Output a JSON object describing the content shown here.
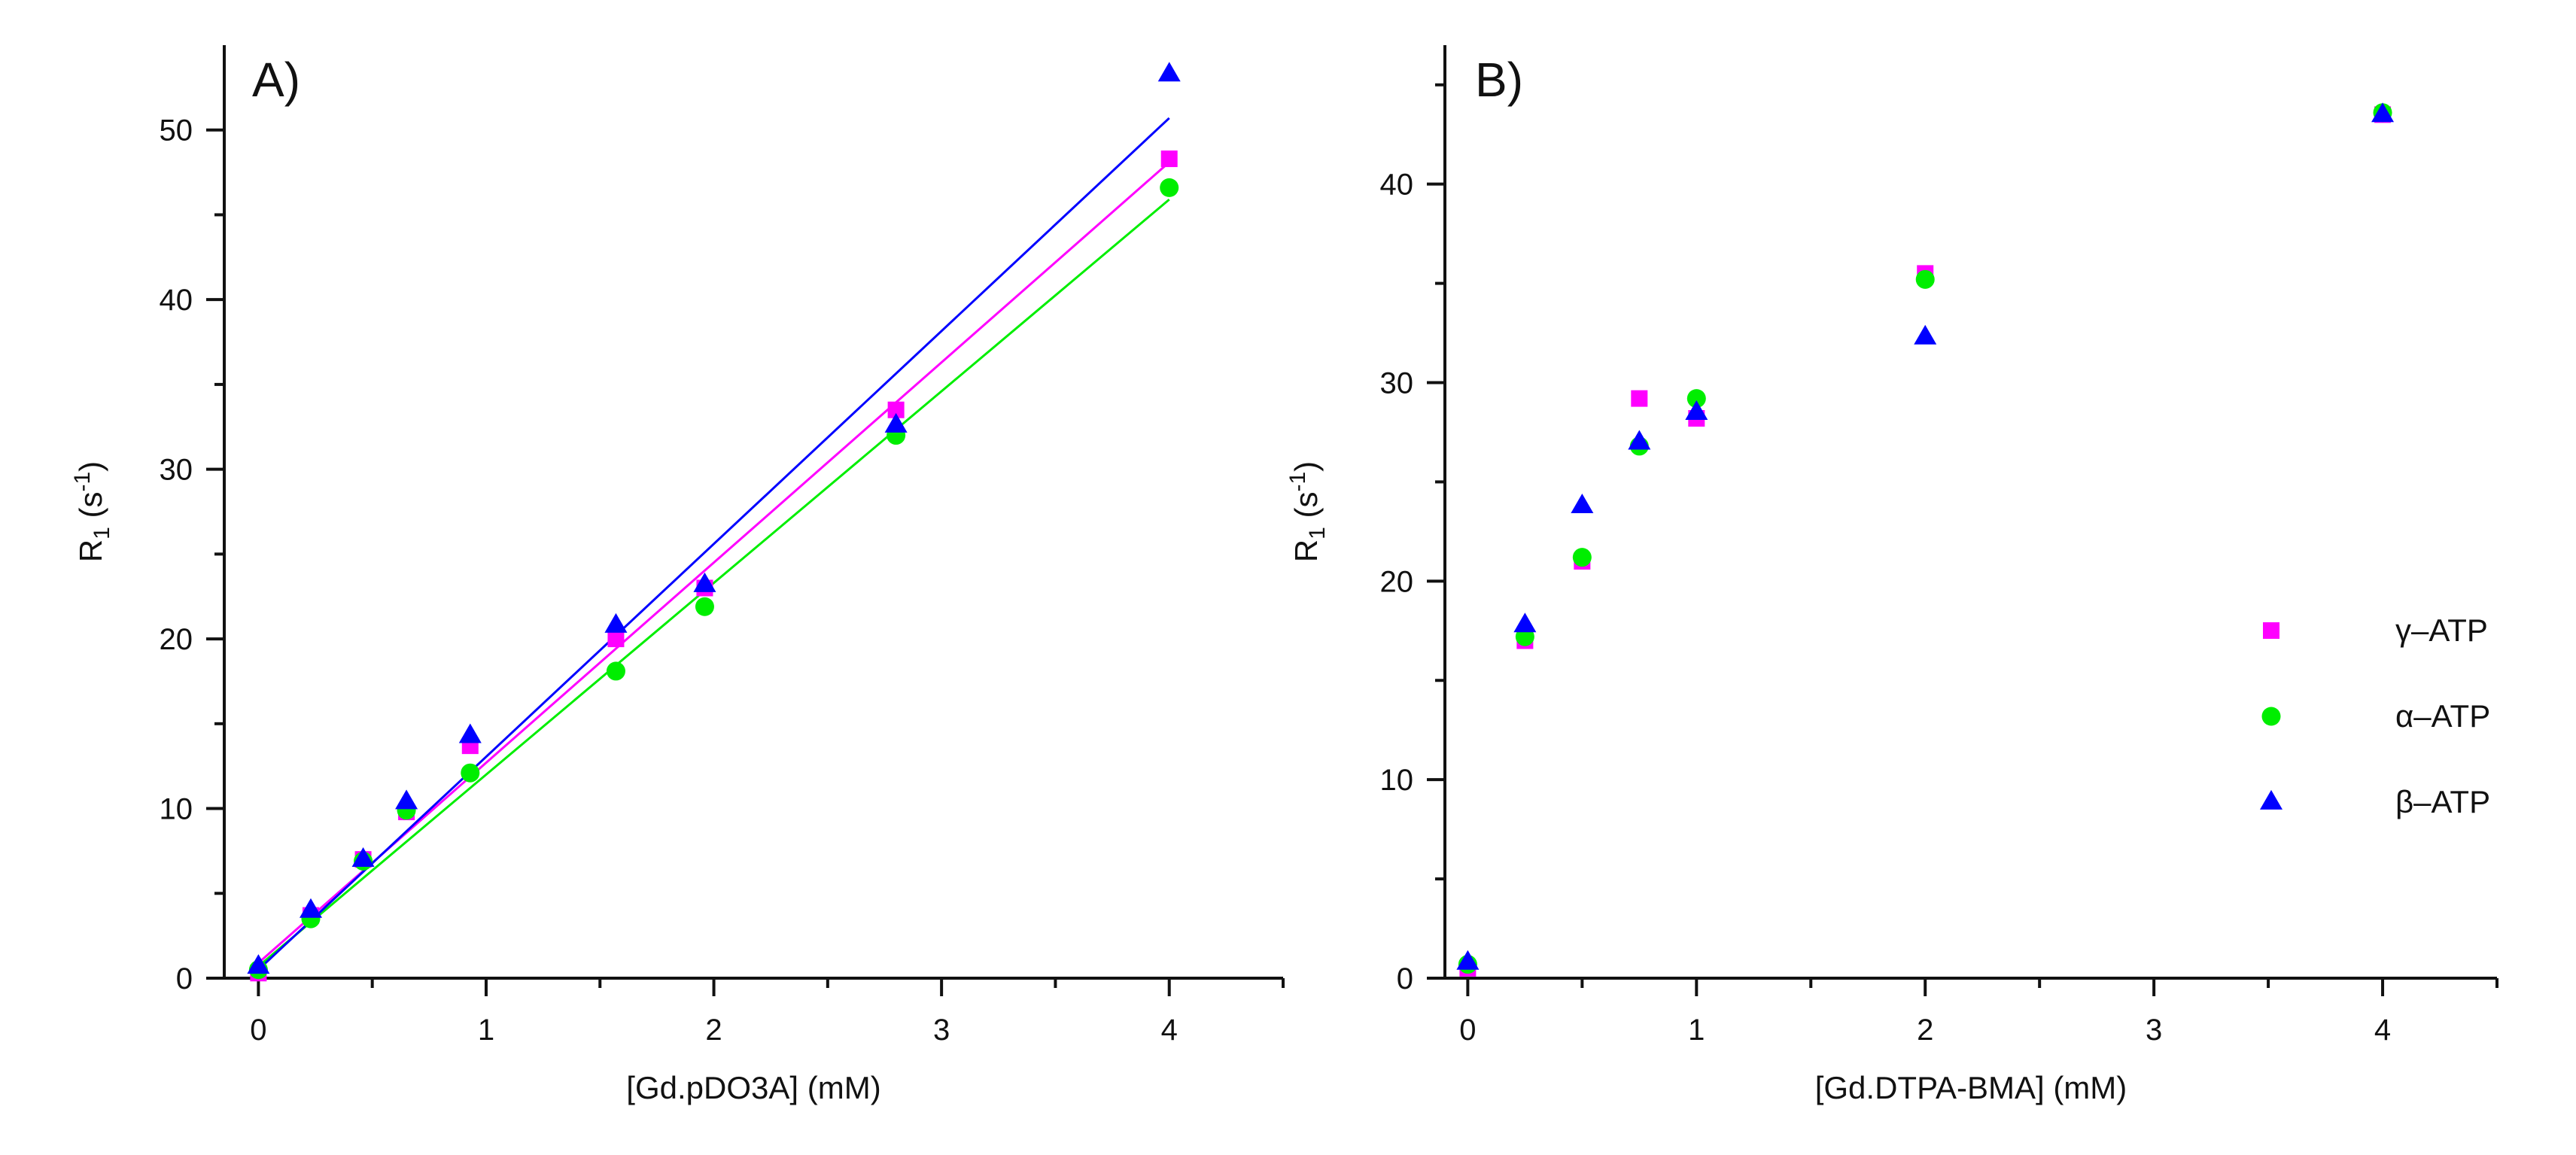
{
  "colors": {
    "gamma": "#ff00ff",
    "alpha": "#00ee00",
    "beta": "#0000ff",
    "axis": "#111111"
  },
  "legend": [
    {
      "key": "gamma",
      "label": "γ–ATP",
      "marker": "square"
    },
    {
      "key": "alpha",
      "label": "α–ATP",
      "marker": "circle"
    },
    {
      "key": "beta",
      "label": "β–ATP",
      "marker": "triangle"
    }
  ],
  "chart_data": [
    {
      "type": "scatter",
      "panel_label": "A)",
      "xlabel": "[Gd.pDO3A] (mM)",
      "ylabel": "R",
      "ylabel_sub": "1",
      "ylabel_unit_pre": " (s",
      "ylabel_sup": "-1",
      "ylabel_unit_post": ")",
      "xlim": [
        -0.15,
        4.5
      ],
      "ylim": [
        0,
        55
      ],
      "xticks": [
        0,
        1,
        2,
        3,
        4
      ],
      "xticks_minor": [
        0.5,
        1.5,
        2.5,
        3.5,
        4.5
      ],
      "yticks": [
        0,
        10,
        20,
        30,
        40,
        50
      ],
      "yticks_minor": [
        5,
        15,
        25,
        35,
        45
      ],
      "series": [
        {
          "key": "gamma",
          "name": "γ–ATP",
          "marker": "square",
          "x": [
            0,
            0.23,
            0.46,
            0.65,
            0.93,
            1.57,
            1.96,
            2.8,
            4.0
          ],
          "y": [
            0.3,
            3.7,
            7.0,
            9.8,
            13.7,
            20.0,
            23.0,
            33.5,
            48.3
          ],
          "fit": {
            "intercept": 0.9,
            "slope": 11.8
          }
        },
        {
          "key": "alpha",
          "name": "α–ATP",
          "marker": "circle",
          "x": [
            0,
            0.23,
            0.46,
            0.65,
            0.93,
            1.57,
            1.96,
            2.8,
            4.0
          ],
          "y": [
            0.5,
            3.5,
            6.9,
            9.9,
            12.1,
            18.1,
            21.9,
            32.0,
            46.6
          ],
          "fit": {
            "intercept": 0.7,
            "slope": 11.3
          }
        },
        {
          "key": "beta",
          "name": "β–ATP",
          "marker": "triangle",
          "x": [
            0,
            0.23,
            0.46,
            0.65,
            0.93,
            1.57,
            1.96,
            2.8,
            4.0
          ],
          "y": [
            0.7,
            4.0,
            7.0,
            10.4,
            14.3,
            20.8,
            23.2,
            32.6,
            53.3
          ],
          "fit": {
            "intercept": 0.5,
            "slope": 12.55
          }
        }
      ]
    },
    {
      "type": "scatter",
      "panel_label": "B)",
      "xlabel": "[Gd.DTPA-BMA] (mM)",
      "ylabel": "R",
      "ylabel_sub": "1",
      "ylabel_unit_pre": " (s",
      "ylabel_sup": "-1",
      "ylabel_unit_post": ")",
      "xlim": [
        -0.1,
        4.5
      ],
      "ylim": [
        0,
        47
      ],
      "xticks": [
        0,
        1,
        2,
        3,
        4
      ],
      "xticks_minor": [
        0.5,
        1.5,
        2.5,
        3.5,
        4.5
      ],
      "yticks": [
        0,
        10,
        20,
        30,
        40
      ],
      "yticks_minor": [
        5,
        15,
        25,
        35,
        45
      ],
      "legend_position": "right-middle",
      "series": [
        {
          "key": "gamma",
          "name": "γ–ATP",
          "marker": "square",
          "x": [
            0,
            0.25,
            0.5,
            0.75,
            1.0,
            2.0,
            4.0
          ],
          "y": [
            0.5,
            17.0,
            21.0,
            29.2,
            28.2,
            35.5,
            43.5
          ]
        },
        {
          "key": "alpha",
          "name": "α–ATP",
          "marker": "circle",
          "x": [
            0,
            0.25,
            0.5,
            0.75,
            1.0,
            2.0,
            4.0
          ],
          "y": [
            0.7,
            17.2,
            21.2,
            26.8,
            29.2,
            35.2,
            43.6
          ]
        },
        {
          "key": "beta",
          "name": "β–ATP",
          "marker": "triangle",
          "x": [
            0,
            0.25,
            0.5,
            0.75,
            1.0,
            2.0,
            4.0
          ],
          "y": [
            0.8,
            17.8,
            23.8,
            27.0,
            28.5,
            32.3,
            43.5
          ]
        }
      ]
    }
  ]
}
